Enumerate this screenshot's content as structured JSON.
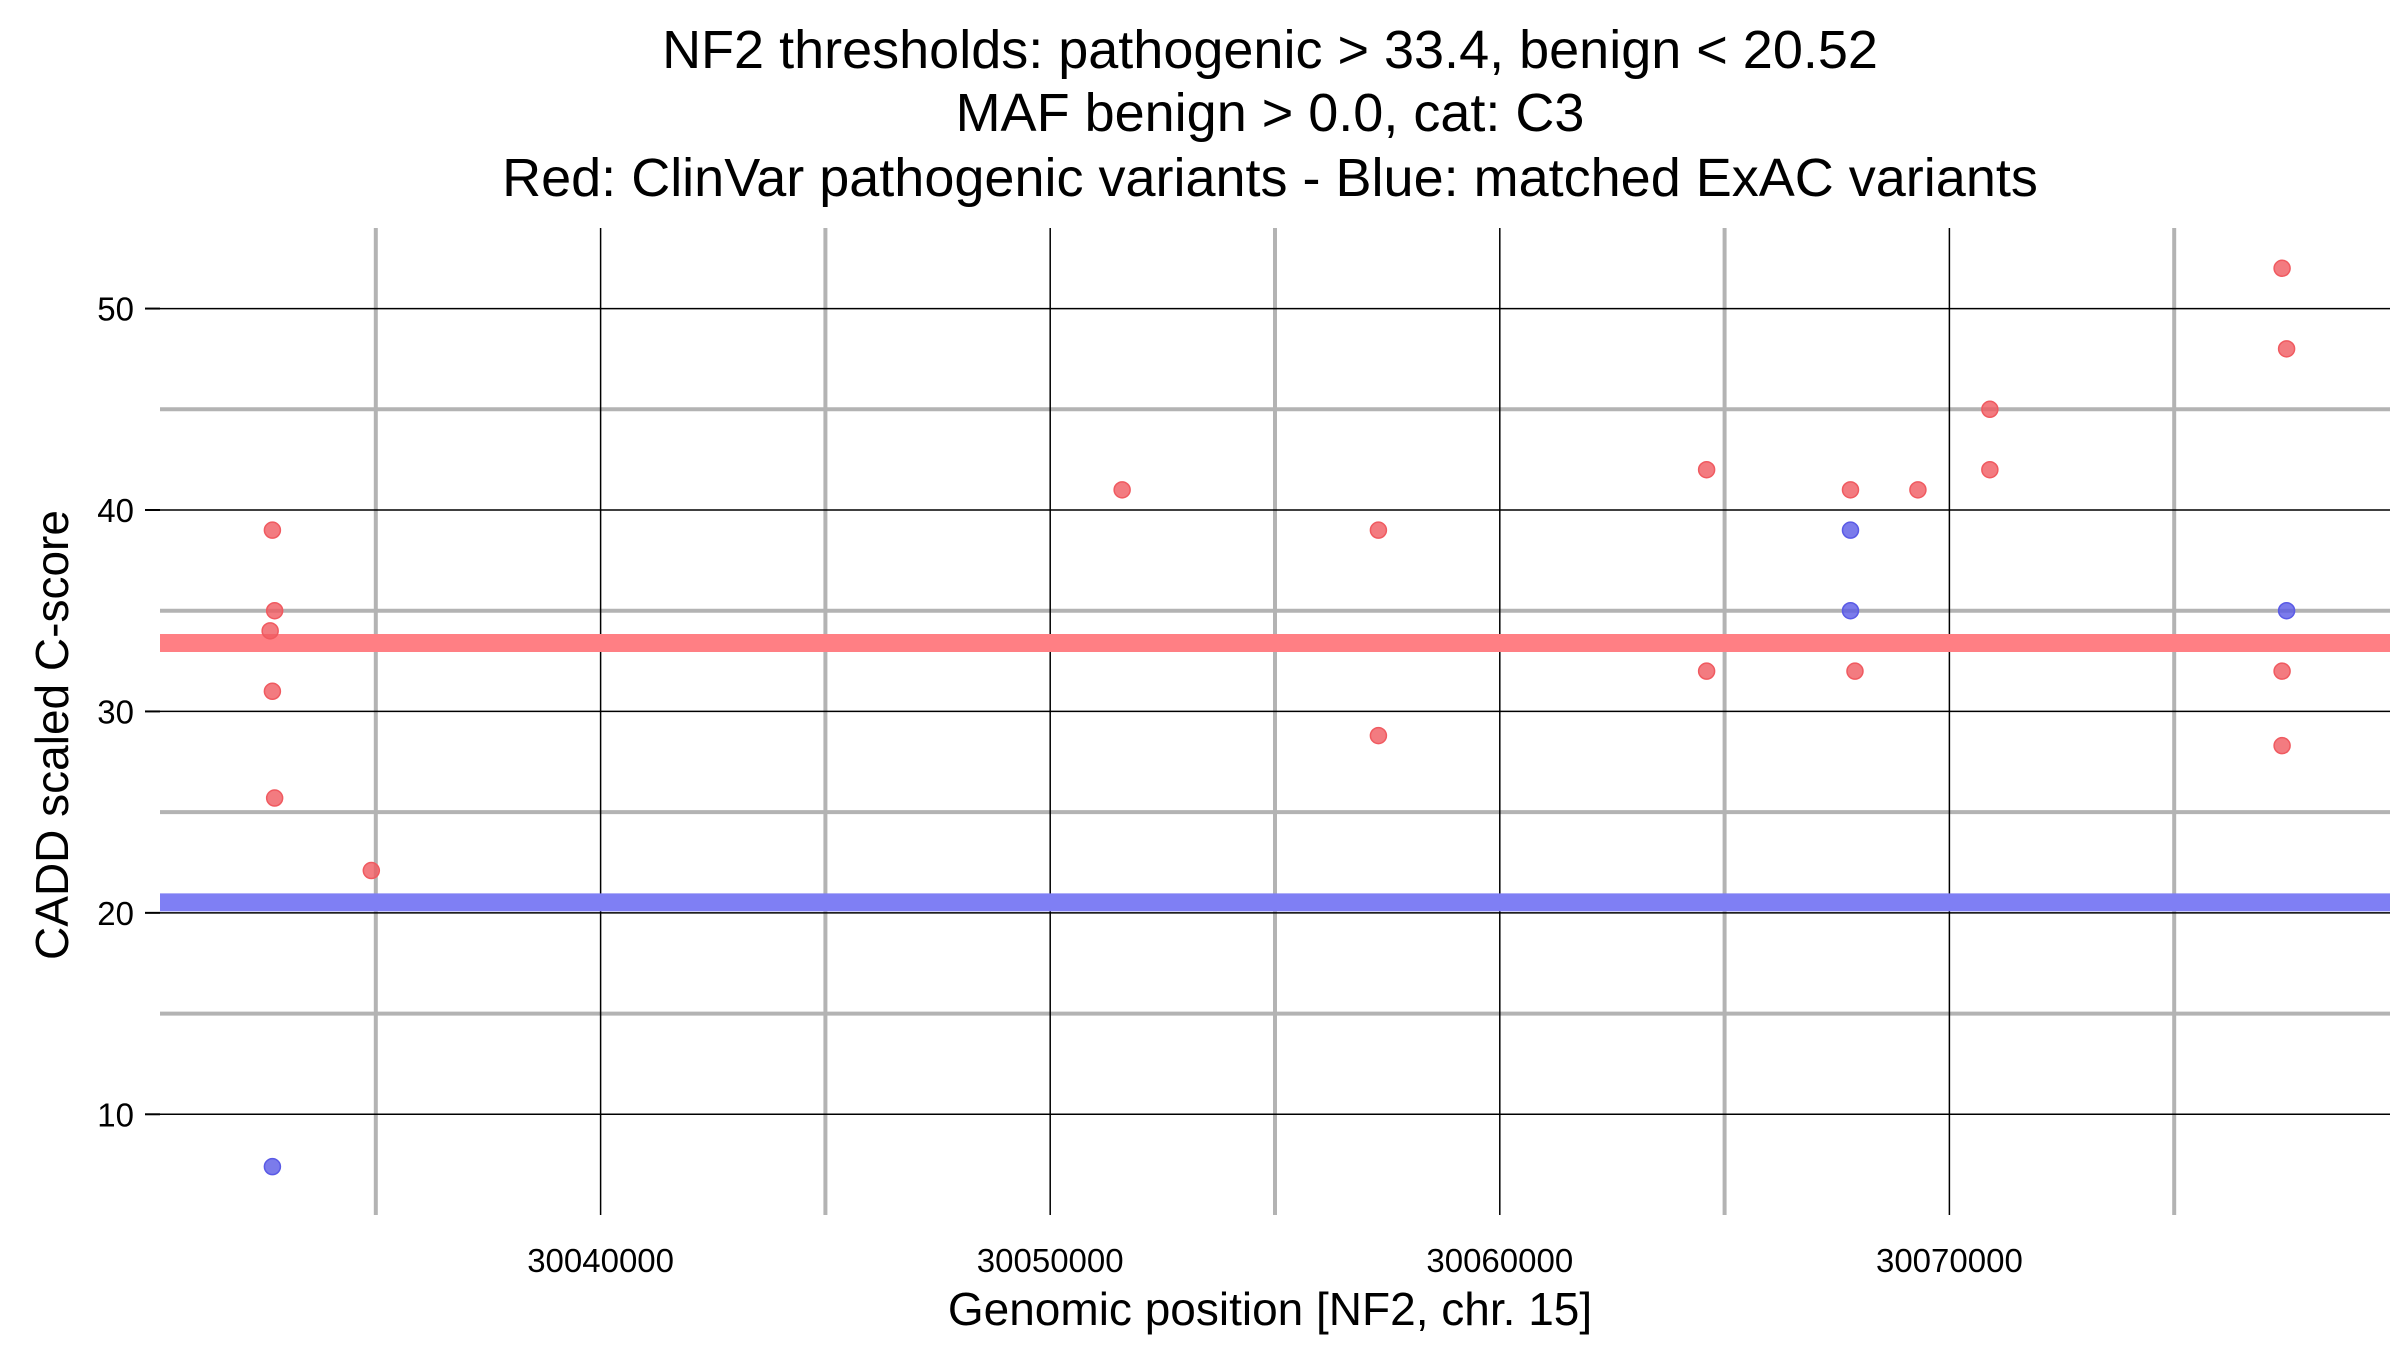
{
  "chart_data": {
    "type": "scatter",
    "title_lines": [
      "NF2 thresholds: pathogenic > 33.4, benign < 20.52",
      "MAF benign > 0.0, cat: C3",
      "Red: ClinVar pathogenic variants - Blue: matched ExAC variants"
    ],
    "xlabel": "Genomic position [NF2, chr. 15]",
    "ylabel": "CADD scaled C-score",
    "xlim": [
      30030200,
      30079800
    ],
    "ylim": [
      5,
      54
    ],
    "x_major_ticks": [
      30040000,
      30050000,
      30060000,
      30070000
    ],
    "x_minor_ticks": [
      30035000,
      30045000,
      30055000,
      30065000,
      30075000
    ],
    "y_major_ticks": [
      10,
      20,
      30,
      40,
      50
    ],
    "y_minor_ticks": [
      15,
      25,
      35,
      45
    ],
    "x_tick_labels": [
      "30040000",
      "30050000",
      "30060000",
      "30070000"
    ],
    "y_tick_labels": [
      "10",
      "20",
      "30",
      "40",
      "50"
    ],
    "grid": true,
    "thresholds": [
      {
        "label": "pathogenic",
        "value": 33.4,
        "color": "#ff7f84"
      },
      {
        "label": "benign",
        "value": 20.52,
        "color": "#7f7ff4"
      }
    ],
    "series": [
      {
        "color": "#f05a60",
        "points": [
          [
            30032700,
            39
          ],
          [
            30032750,
            35
          ],
          [
            30032650,
            34
          ],
          [
            30032700,
            31
          ],
          [
            30032750,
            25.7
          ],
          [
            30034900,
            22.1
          ],
          [
            30051600,
            41
          ],
          [
            30057300,
            39
          ],
          [
            30057300,
            28.8
          ],
          [
            30064600,
            42
          ],
          [
            30064600,
            32
          ],
          [
            30067800,
            41
          ],
          [
            30067900,
            32
          ],
          [
            30069300,
            41
          ],
          [
            30070900,
            45
          ],
          [
            30070900,
            42
          ],
          [
            30077400,
            52
          ],
          [
            30077500,
            48
          ],
          [
            30077400,
            32
          ],
          [
            30077400,
            28.3
          ]
        ]
      },
      {
        "color": "#5a5ae6",
        "points": [
          [
            30032700,
            7.4
          ],
          [
            30067800,
            39
          ],
          [
            30067800,
            35
          ],
          [
            30077500,
            35
          ]
        ]
      }
    ]
  }
}
